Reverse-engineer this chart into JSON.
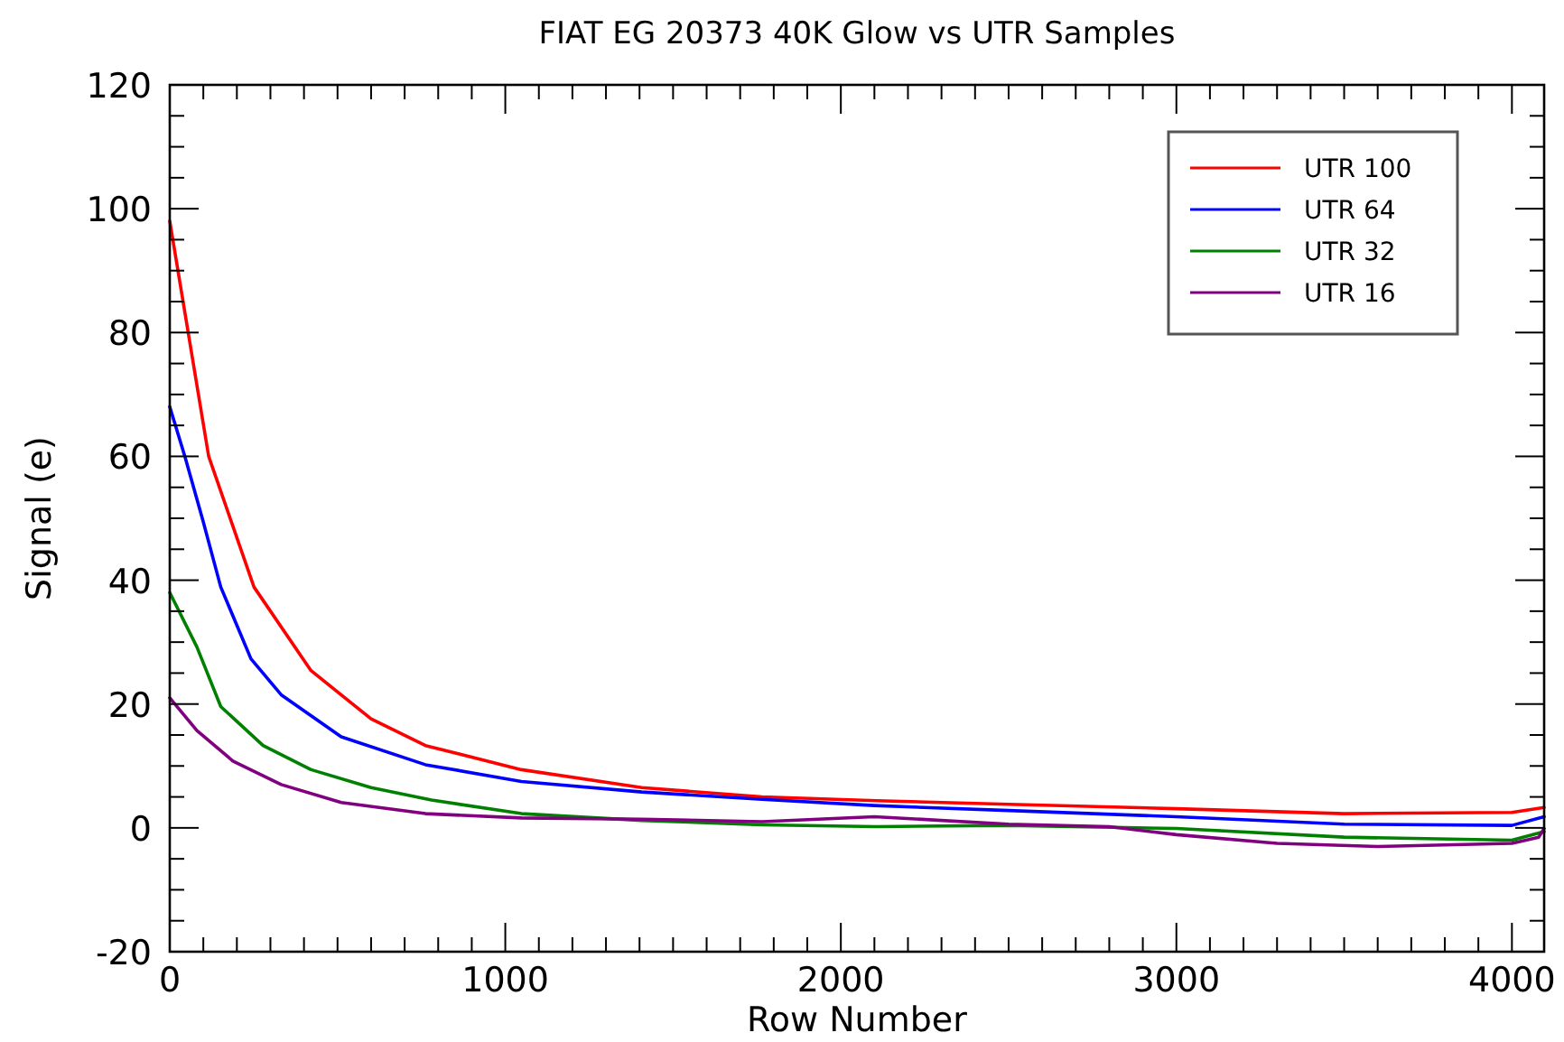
{
  "chart_data": {
    "type": "line",
    "title": "FIAT EG 20373 40K Glow vs UTR Samples",
    "xlabel": "Row Number",
    "ylabel": "Signal (e)",
    "xlim": [
      0,
      4096
    ],
    "ylim": [
      -20,
      120
    ],
    "xticks": [
      0,
      {
        "value": 100,
        "label": null
      },
      {
        "value": 200,
        "label": null
      },
      {
        "value": 300,
        "label": null
      },
      {
        "value": 400,
        "label": null
      },
      {
        "value": 500,
        "label": null
      },
      {
        "value": 600,
        "label": null
      },
      {
        "value": 700,
        "label": null
      },
      {
        "value": 800,
        "label": null
      },
      {
        "value": 900,
        "label": null
      },
      1000,
      {
        "value": 1100,
        "label": null
      },
      {
        "value": 1200,
        "label": null
      },
      {
        "value": 1300,
        "label": null
      },
      {
        "value": 1400,
        "label": null
      },
      {
        "value": 1500,
        "label": null
      },
      {
        "value": 1600,
        "label": null
      },
      {
        "value": 1700,
        "label": null
      },
      {
        "value": 1800,
        "label": null
      },
      {
        "value": 1900,
        "label": null
      },
      2000,
      {
        "value": 2100,
        "label": null
      },
      {
        "value": 2200,
        "label": null
      },
      {
        "value": 2300,
        "label": null
      },
      {
        "value": 2400,
        "label": null
      },
      {
        "value": 2500,
        "label": null
      },
      {
        "value": 2600,
        "label": null
      },
      {
        "value": 2700,
        "label": null
      },
      {
        "value": 2800,
        "label": null
      },
      {
        "value": 2900,
        "label": null
      },
      3000,
      {
        "value": 3100,
        "label": null
      },
      {
        "value": 3200,
        "label": null
      },
      {
        "value": 3300,
        "label": null
      },
      {
        "value": 3400,
        "label": null
      },
      {
        "value": 3500,
        "label": null
      },
      {
        "value": 3600,
        "label": null
      },
      {
        "value": 3700,
        "label": null
      },
      {
        "value": 3800,
        "label": null
      },
      {
        "value": 3900,
        "label": null
      },
      4000
    ],
    "yticks": [
      -20,
      {
        "value": -15,
        "label": null
      },
      {
        "value": -10,
        "label": null
      },
      {
        "value": -5,
        "label": null
      },
      0,
      {
        "value": 5,
        "label": null
      },
      {
        "value": 10,
        "label": null
      },
      {
        "value": 15,
        "label": null
      },
      20,
      {
        "value": 25,
        "label": null
      },
      {
        "value": 30,
        "label": null
      },
      {
        "value": 35,
        "label": null
      },
      40,
      {
        "value": 45,
        "label": null
      },
      {
        "value": 50,
        "label": null
      },
      {
        "value": 55,
        "label": null
      },
      60,
      {
        "value": 65,
        "label": null
      },
      {
        "value": 70,
        "label": null
      },
      {
        "value": 75,
        "label": null
      },
      80,
      {
        "value": 85,
        "label": null
      },
      {
        "value": 90,
        "label": null
      },
      {
        "value": 95,
        "label": null
      },
      100,
      {
        "value": 105,
        "label": null
      },
      {
        "value": 110,
        "label": null
      },
      {
        "value": 115,
        "label": null
      },
      120
    ],
    "grid": false,
    "legend": "top right",
    "marker": "none",
    "line_style": "solid",
    "series": [
      {
        "name": "UTR 100",
        "color": "#ff0000",
        "x": [
          0,
          116,
          251,
          421,
          600,
          762,
          1048,
          1407,
          1765,
          2106,
          2500,
          3000,
          3500,
          4000,
          4096
        ],
        "values": [
          98,
          60,
          38.9,
          25.4,
          17.6,
          13.3,
          9.4,
          6.5,
          5.0,
          4.4,
          3.8,
          3.1,
          2.3,
          2.5,
          3.3
        ]
      },
      {
        "name": "UTR 64",
        "color": "#0000ff",
        "x": [
          0,
          45,
          99,
          152,
          242,
          332,
          511,
          762,
          1048,
          1407,
          1765,
          2100,
          2500,
          3000,
          3500,
          4000,
          4096
        ],
        "values": [
          68,
          60,
          49.6,
          38.9,
          27.3,
          21.5,
          14.7,
          10.2,
          7.5,
          5.8,
          4.6,
          3.6,
          2.8,
          1.8,
          0.6,
          0.4,
          1.8
        ]
      },
      {
        "name": "UTR 32",
        "color": "#008000",
        "x": [
          0,
          81,
          152,
          278,
          421,
          600,
          780,
          1048,
          1407,
          1765,
          2106,
          2500,
          3000,
          3500,
          4000,
          4096
        ],
        "values": [
          38,
          29.2,
          19.6,
          13.3,
          9.4,
          6.5,
          4.5,
          2.3,
          1.2,
          0.5,
          0.2,
          0.4,
          -0.1,
          -1.5,
          -2.0,
          -0.6
        ]
      },
      {
        "name": "UTR 16",
        "color": "#800080",
        "x": [
          0,
          81,
          188,
          332,
          511,
          762,
          1048,
          1407,
          1765,
          2100,
          2500,
          2800,
          3000,
          3300,
          3600,
          4000,
          4080,
          4096
        ],
        "values": [
          21,
          15.7,
          10.8,
          7.0,
          4.1,
          2.3,
          1.6,
          1.4,
          1.0,
          1.8,
          0.6,
          0.2,
          -1.1,
          -2.5,
          -3.0,
          -2.5,
          -1.5,
          -0.1
        ]
      }
    ]
  }
}
